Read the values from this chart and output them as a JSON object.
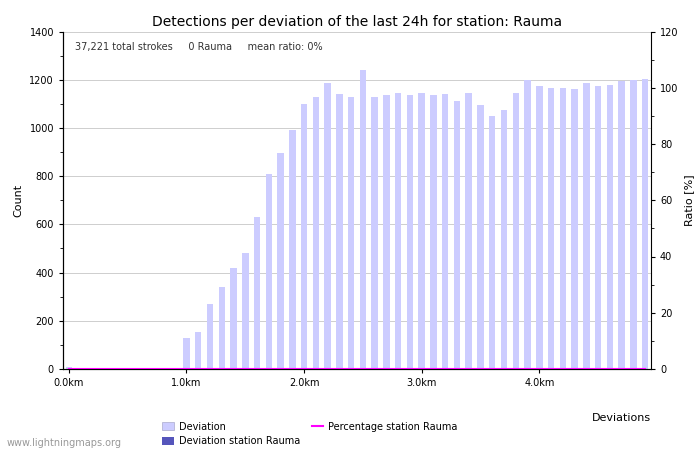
{
  "title": "Detections per deviation of the last 24h for station: Rauma",
  "annotation": "37,221 total strokes     0 Rauma     mean ratio: 0%",
  "xlabel": "Deviations",
  "ylabel_left": "Count",
  "ylabel_right": "Ratio [%]",
  "watermark": "www.lightningmaps.org",
  "bar_color": "#ccccff",
  "bar_color_station": "#5555bb",
  "line_color": "#ff00ff",
  "ylim_left": [
    0,
    1400
  ],
  "ylim_right": [
    0,
    120
  ],
  "yticks_left": [
    0,
    200,
    400,
    600,
    800,
    1000,
    1200,
    1400
  ],
  "yticks_right": [
    0,
    20,
    40,
    60,
    80,
    100,
    120
  ],
  "xtick_labels": [
    "0.0km",
    "1.0km",
    "2.0km",
    "3.0km",
    "4.0km"
  ],
  "xtick_positions": [
    0,
    10,
    20,
    30,
    40
  ],
  "bar_values": [
    10,
    5,
    3,
    2,
    2,
    2,
    2,
    2,
    2,
    2,
    130,
    155,
    270,
    340,
    420,
    480,
    630,
    810,
    895,
    990,
    1100,
    1130,
    1185,
    1140,
    1130,
    1240,
    1130,
    1135,
    1145,
    1135,
    1145,
    1135,
    1140,
    1110,
    1145,
    1095,
    1050,
    1075,
    1145,
    1200,
    1175,
    1165,
    1165,
    1160,
    1185,
    1175,
    1180,
    1195,
    1200,
    1205
  ],
  "station_bar_values": [
    0,
    0,
    0,
    0,
    0,
    0,
    0,
    0,
    0,
    0,
    0,
    0,
    0,
    0,
    0,
    0,
    0,
    0,
    0,
    0,
    0,
    0,
    0,
    0,
    0,
    0,
    0,
    0,
    0,
    0,
    0,
    0,
    0,
    0,
    0,
    0,
    0,
    0,
    0,
    0,
    0,
    0,
    0,
    0,
    0,
    0,
    0,
    0,
    0,
    0
  ],
  "percentage_values": [
    0,
    0,
    0,
    0,
    0,
    0,
    0,
    0,
    0,
    0,
    0,
    0,
    0,
    0,
    0,
    0,
    0,
    0,
    0,
    0,
    0,
    0,
    0,
    0,
    0,
    0,
    0,
    0,
    0,
    0,
    0,
    0,
    0,
    0,
    0,
    0,
    0,
    0,
    0,
    0,
    0,
    0,
    0,
    0,
    0,
    0,
    0,
    0,
    0,
    0
  ],
  "n_bars": 50,
  "figsize": [
    7.0,
    4.5
  ],
  "dpi": 100,
  "title_fontsize": 10,
  "axis_fontsize": 8,
  "tick_fontsize": 7,
  "annotation_fontsize": 7,
  "watermark_fontsize": 7
}
